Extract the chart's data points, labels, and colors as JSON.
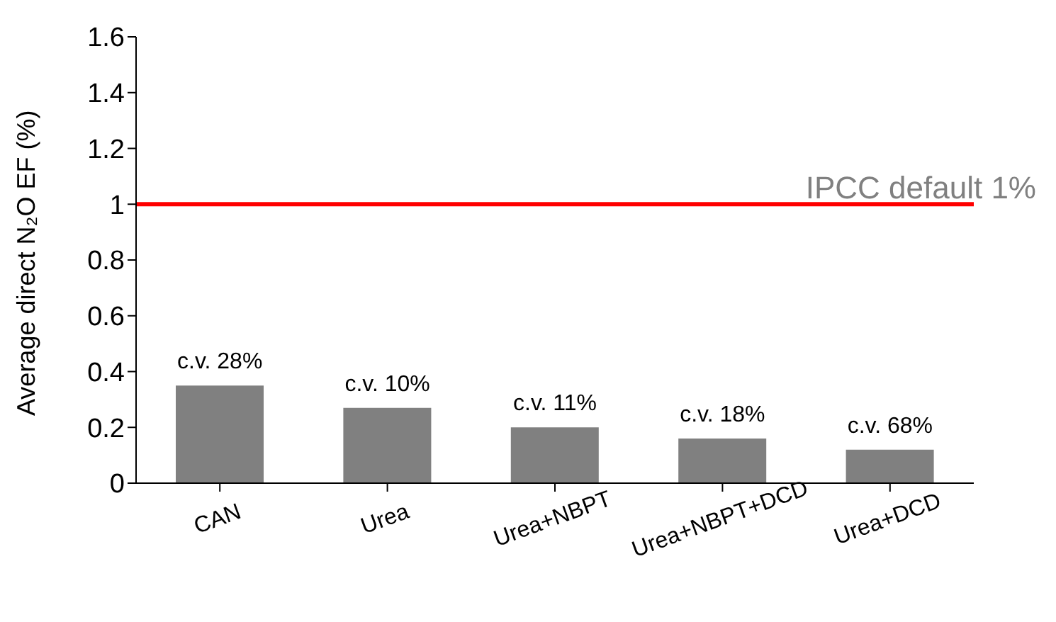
{
  "chart_data": {
    "type": "bar",
    "ylabel": "Average direct N₂O EF (%)",
    "categories": [
      "CAN",
      "Urea",
      "Urea+NBPT",
      "Urea+NBPT+DCD",
      "Urea+DCD"
    ],
    "values": [
      0.35,
      0.27,
      0.2,
      0.16,
      0.12
    ],
    "annotations": [
      {
        "text": "c.v. 28%",
        "x": "CAN",
        "y": 0.35
      },
      {
        "text": "c.v. 10%",
        "x": "Urea",
        "y": 0.27
      },
      {
        "text": "c.v. 11%",
        "x": "Urea+NBPT",
        "y": 0.2
      },
      {
        "text": "c.v. 18%",
        "x": "Urea+NBPT+DCD",
        "y": 0.16
      },
      {
        "text": "c.v. 68%",
        "x": "Urea+DCD",
        "y": 0.12
      }
    ],
    "color": "#808080",
    "ylim": [
      0,
      1.6
    ],
    "yticks": [
      0,
      0.2,
      0.4,
      0.6,
      0.8,
      1,
      1.2,
      1.4,
      1.6
    ],
    "ref_lines": [
      {
        "axis": "y",
        "value": 1,
        "label": "IPCC default 1%",
        "color": "#ff0000"
      }
    ],
    "grid": false,
    "legend": false
  }
}
